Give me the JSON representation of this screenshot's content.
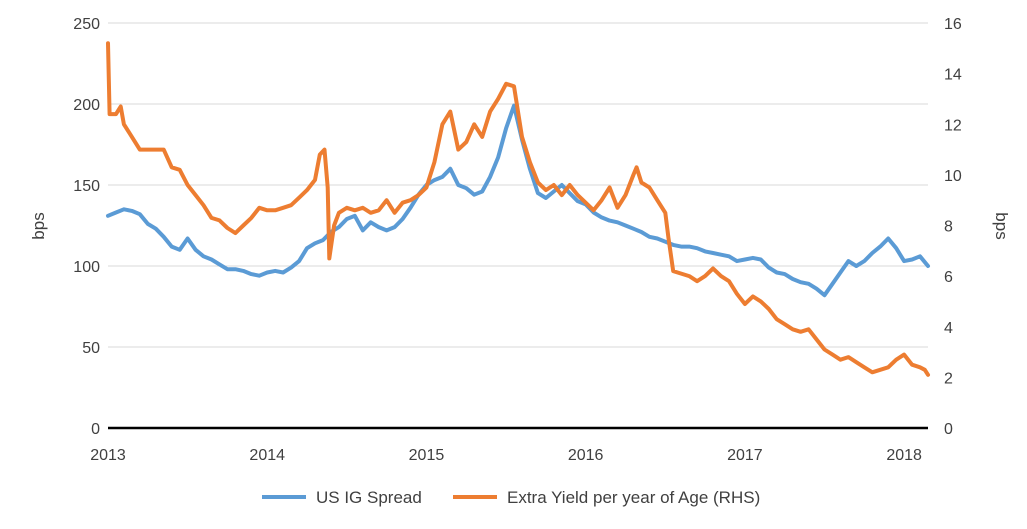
{
  "chart_data": {
    "type": "line",
    "title": "",
    "ylabel_left": "bps",
    "ylabel_right": "bps",
    "xlim": [
      2013,
      2018.15
    ],
    "ylim_left": [
      0,
      250
    ],
    "ylim_right": [
      0,
      16
    ],
    "x_ticks": [
      "2013",
      "2014",
      "2015",
      "2016",
      "2017",
      "2018"
    ],
    "y_ticks_left": [
      "0",
      "50",
      "100",
      "150",
      "200",
      "250"
    ],
    "y_ticks_right": [
      "0",
      "2",
      "4",
      "6",
      "8",
      "10",
      "12",
      "14",
      "16"
    ],
    "grid": "horizontal",
    "legend_position": "bottom",
    "series": [
      {
        "name": "US IG Spread",
        "axis": "left",
        "color": "#5b9bd5",
        "points": [
          [
            2013.0,
            131
          ],
          [
            2013.05,
            133
          ],
          [
            2013.1,
            135
          ],
          [
            2013.15,
            134
          ],
          [
            2013.2,
            132
          ],
          [
            2013.25,
            126
          ],
          [
            2013.3,
            123
          ],
          [
            2013.35,
            118
          ],
          [
            2013.4,
            112
          ],
          [
            2013.45,
            110
          ],
          [
            2013.5,
            117
          ],
          [
            2013.55,
            110
          ],
          [
            2013.6,
            106
          ],
          [
            2013.65,
            104
          ],
          [
            2013.7,
            101
          ],
          [
            2013.75,
            98
          ],
          [
            2013.8,
            98
          ],
          [
            2013.85,
            97
          ],
          [
            2013.9,
            95
          ],
          [
            2013.95,
            94
          ],
          [
            2014.0,
            96
          ],
          [
            2014.05,
            97
          ],
          [
            2014.1,
            96
          ],
          [
            2014.15,
            99
          ],
          [
            2014.2,
            103
          ],
          [
            2014.25,
            111
          ],
          [
            2014.3,
            114
          ],
          [
            2014.35,
            116
          ],
          [
            2014.4,
            121
          ],
          [
            2014.45,
            124
          ],
          [
            2014.5,
            129
          ],
          [
            2014.55,
            131
          ],
          [
            2014.6,
            122
          ],
          [
            2014.65,
            127
          ],
          [
            2014.7,
            124
          ],
          [
            2014.75,
            122
          ],
          [
            2014.8,
            124
          ],
          [
            2014.85,
            129
          ],
          [
            2014.9,
            136
          ],
          [
            2014.95,
            144
          ],
          [
            2015.0,
            150
          ],
          [
            2015.05,
            153
          ],
          [
            2015.1,
            155
          ],
          [
            2015.15,
            160
          ],
          [
            2015.2,
            150
          ],
          [
            2015.25,
            148
          ],
          [
            2015.3,
            144
          ],
          [
            2015.35,
            146
          ],
          [
            2015.4,
            155
          ],
          [
            2015.45,
            167
          ],
          [
            2015.5,
            185
          ],
          [
            2015.55,
            199
          ],
          [
            2015.6,
            178
          ],
          [
            2015.65,
            160
          ],
          [
            2015.7,
            145
          ],
          [
            2015.75,
            142
          ],
          [
            2015.8,
            146
          ],
          [
            2015.85,
            150
          ],
          [
            2015.9,
            145
          ],
          [
            2015.95,
            140
          ],
          [
            2016.0,
            138
          ],
          [
            2016.05,
            133
          ],
          [
            2016.1,
            130
          ],
          [
            2016.15,
            128
          ],
          [
            2016.2,
            127
          ],
          [
            2016.25,
            125
          ],
          [
            2016.3,
            123
          ],
          [
            2016.35,
            121
          ],
          [
            2016.4,
            118
          ],
          [
            2016.45,
            117
          ],
          [
            2016.5,
            115
          ],
          [
            2016.55,
            113
          ],
          [
            2016.6,
            112
          ],
          [
            2016.65,
            112
          ],
          [
            2016.7,
            111
          ],
          [
            2016.75,
            109
          ],
          [
            2016.8,
            108
          ],
          [
            2016.85,
            107
          ],
          [
            2016.9,
            106
          ],
          [
            2016.95,
            103
          ],
          [
            2017.0,
            104
          ],
          [
            2017.05,
            105
          ],
          [
            2017.1,
            104
          ],
          [
            2017.15,
            99
          ],
          [
            2017.2,
            96
          ],
          [
            2017.25,
            95
          ],
          [
            2017.3,
            92
          ],
          [
            2017.35,
            90
          ],
          [
            2017.4,
            89
          ],
          [
            2017.45,
            86
          ],
          [
            2017.5,
            82
          ],
          [
            2017.55,
            89
          ],
          [
            2017.6,
            96
          ],
          [
            2017.65,
            103
          ],
          [
            2017.7,
            100
          ],
          [
            2017.75,
            103
          ],
          [
            2017.8,
            108
          ],
          [
            2017.85,
            112
          ],
          [
            2017.9,
            117
          ],
          [
            2017.95,
            111
          ],
          [
            2018.0,
            103
          ],
          [
            2018.05,
            104
          ],
          [
            2018.1,
            106
          ],
          [
            2018.15,
            100
          ]
        ]
      },
      {
        "name": "Extra Yield per year of Age (RHS)",
        "axis": "right",
        "color": "#ed7d31",
        "points": [
          [
            2013.0,
            15.2
          ],
          [
            2013.01,
            12.4
          ],
          [
            2013.05,
            12.4
          ],
          [
            2013.08,
            12.7
          ],
          [
            2013.1,
            12.0
          ],
          [
            2013.15,
            11.5
          ],
          [
            2013.2,
            11.0
          ],
          [
            2013.25,
            11.0
          ],
          [
            2013.3,
            11.0
          ],
          [
            2013.35,
            11.0
          ],
          [
            2013.4,
            10.3
          ],
          [
            2013.45,
            10.2
          ],
          [
            2013.5,
            9.6
          ],
          [
            2013.55,
            9.2
          ],
          [
            2013.6,
            8.8
          ],
          [
            2013.65,
            8.3
          ],
          [
            2013.7,
            8.2
          ],
          [
            2013.75,
            7.9
          ],
          [
            2013.8,
            7.7
          ],
          [
            2013.85,
            8.0
          ],
          [
            2013.9,
            8.3
          ],
          [
            2013.95,
            8.7
          ],
          [
            2014.0,
            8.6
          ],
          [
            2014.05,
            8.6
          ],
          [
            2014.1,
            8.7
          ],
          [
            2014.15,
            8.8
          ],
          [
            2014.2,
            9.1
          ],
          [
            2014.25,
            9.4
          ],
          [
            2014.3,
            9.8
          ],
          [
            2014.33,
            10.8
          ],
          [
            2014.36,
            11.0
          ],
          [
            2014.38,
            9.5
          ],
          [
            2014.39,
            6.7
          ],
          [
            2014.42,
            8.0
          ],
          [
            2014.45,
            8.5
          ],
          [
            2014.5,
            8.7
          ],
          [
            2014.55,
            8.6
          ],
          [
            2014.6,
            8.7
          ],
          [
            2014.65,
            8.5
          ],
          [
            2014.7,
            8.6
          ],
          [
            2014.75,
            9.0
          ],
          [
            2014.8,
            8.5
          ],
          [
            2014.85,
            8.9
          ],
          [
            2014.9,
            9.0
          ],
          [
            2014.95,
            9.2
          ],
          [
            2015.0,
            9.5
          ],
          [
            2015.05,
            10.5
          ],
          [
            2015.1,
            12.0
          ],
          [
            2015.15,
            12.5
          ],
          [
            2015.2,
            11.0
          ],
          [
            2015.25,
            11.3
          ],
          [
            2015.3,
            12.0
          ],
          [
            2015.35,
            11.5
          ],
          [
            2015.4,
            12.5
          ],
          [
            2015.45,
            13.0
          ],
          [
            2015.5,
            13.6
          ],
          [
            2015.55,
            13.5
          ],
          [
            2015.6,
            11.5
          ],
          [
            2015.65,
            10.5
          ],
          [
            2015.7,
            9.7
          ],
          [
            2015.75,
            9.4
          ],
          [
            2015.8,
            9.6
          ],
          [
            2015.85,
            9.2
          ],
          [
            2015.9,
            9.6
          ],
          [
            2015.95,
            9.2
          ],
          [
            2016.0,
            8.9
          ],
          [
            2016.05,
            8.6
          ],
          [
            2016.1,
            9.0
          ],
          [
            2016.15,
            9.5
          ],
          [
            2016.2,
            8.7
          ],
          [
            2016.25,
            9.2
          ],
          [
            2016.3,
            10.0
          ],
          [
            2016.32,
            10.3
          ],
          [
            2016.35,
            9.7
          ],
          [
            2016.4,
            9.5
          ],
          [
            2016.45,
            9.0
          ],
          [
            2016.5,
            8.5
          ],
          [
            2016.52,
            7.5
          ],
          [
            2016.55,
            6.2
          ],
          [
            2016.6,
            6.1
          ],
          [
            2016.65,
            6.0
          ],
          [
            2016.7,
            5.8
          ],
          [
            2016.75,
            6.0
          ],
          [
            2016.8,
            6.3
          ],
          [
            2016.85,
            6.0
          ],
          [
            2016.9,
            5.8
          ],
          [
            2016.95,
            5.3
          ],
          [
            2017.0,
            4.9
          ],
          [
            2017.05,
            5.2
          ],
          [
            2017.1,
            5.0
          ],
          [
            2017.15,
            4.7
          ],
          [
            2017.2,
            4.3
          ],
          [
            2017.25,
            4.1
          ],
          [
            2017.3,
            3.9
          ],
          [
            2017.35,
            3.8
          ],
          [
            2017.4,
            3.9
          ],
          [
            2017.45,
            3.5
          ],
          [
            2017.5,
            3.1
          ],
          [
            2017.55,
            2.9
          ],
          [
            2017.6,
            2.7
          ],
          [
            2017.65,
            2.8
          ],
          [
            2017.7,
            2.6
          ],
          [
            2017.75,
            2.4
          ],
          [
            2017.8,
            2.2
          ],
          [
            2017.85,
            2.3
          ],
          [
            2017.9,
            2.4
          ],
          [
            2017.95,
            2.7
          ],
          [
            2018.0,
            2.9
          ],
          [
            2018.05,
            2.5
          ],
          [
            2018.1,
            2.4
          ],
          [
            2018.13,
            2.3
          ],
          [
            2018.15,
            2.1
          ]
        ]
      }
    ]
  }
}
